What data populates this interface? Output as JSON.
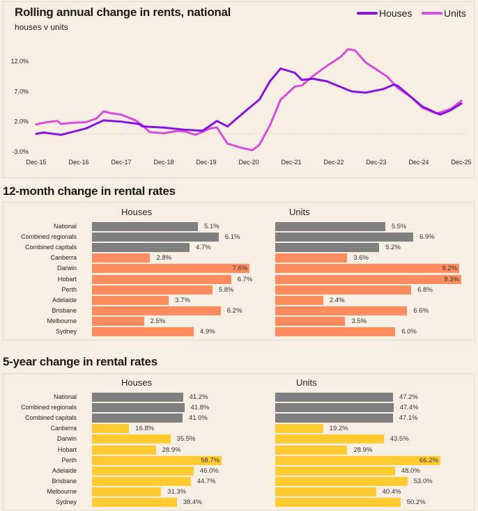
{
  "line_chart": {
    "title": "Rolling annual change in rents, national",
    "subtitle": "houses v units",
    "legend": [
      {
        "label": "Houses",
        "color": "#8a12e0"
      },
      {
        "label": "Units",
        "color": "#d64fd8"
      }
    ]
  },
  "chart_data": [
    {
      "type": "line",
      "title": "Rolling annual change in rents, national",
      "subtitle": "houses v units",
      "x_tick_labels": [
        "Dec-15",
        "Dec-16",
        "Dec-17",
        "Dec-18",
        "Dec-19",
        "Dec-20",
        "Dec-21",
        "Dec-22",
        "Dec-23",
        "Dec-24",
        "Dec-25"
      ],
      "y_tick_labels": [
        "12.0%",
        "7.0%",
        "2.0%",
        "-3.0%"
      ],
      "ylim": [
        -3,
        12
      ],
      "xlim": [
        "2015-12",
        "2025-12"
      ],
      "grid": false,
      "legend_position": "top-right",
      "series": [
        {
          "name": "Houses",
          "color": "#8a12e0",
          "points": [
            [
              "2015-12",
              -0.05
            ],
            [
              "2016-02",
              0.2
            ],
            [
              "2016-07",
              -0.2
            ],
            [
              "2017-02",
              0.85
            ],
            [
              "2017-07",
              2.2
            ],
            [
              "2017-12",
              2.0
            ],
            [
              "2018-05",
              1.6
            ],
            [
              "2018-06",
              1.2
            ],
            [
              "2018-12",
              1.0
            ],
            [
              "2019-06",
              0.65
            ],
            [
              "2019-11",
              0.5
            ],
            [
              "2020-03",
              2.1
            ],
            [
              "2020-06",
              1.2
            ],
            [
              "2020-11",
              3.7
            ],
            [
              "2021-03",
              5.65
            ],
            [
              "2021-06",
              8.7
            ],
            [
              "2021-09",
              10.8
            ],
            [
              "2022-01",
              10.1
            ],
            [
              "2022-03",
              8.9
            ],
            [
              "2022-06",
              9.1
            ],
            [
              "2022-10",
              8.7
            ],
            [
              "2023-05",
              7.0
            ],
            [
              "2023-09",
              6.8
            ],
            [
              "2024-02",
              7.4
            ],
            [
              "2024-05",
              8.15
            ],
            [
              "2024-06",
              7.96
            ],
            [
              "2024-10",
              6.0
            ],
            [
              "2025-01",
              4.5
            ],
            [
              "2025-06",
              3.15
            ],
            [
              "2025-09",
              3.9
            ],
            [
              "2025-12",
              5.0
            ]
          ]
        },
        {
          "name": "Units",
          "color": "#d64fd8",
          "points": [
            [
              "2015-12",
              1.55
            ],
            [
              "2016-03",
              1.9
            ],
            [
              "2016-06",
              2.1
            ],
            [
              "2016-07",
              1.6
            ],
            [
              "2016-10",
              1.8
            ],
            [
              "2017-02",
              1.9
            ],
            [
              "2017-05",
              2.5
            ],
            [
              "2017-07",
              3.7
            ],
            [
              "2017-09",
              3.4
            ],
            [
              "2017-12",
              3.15
            ],
            [
              "2018-04",
              2.2
            ],
            [
              "2018-06",
              1.4
            ],
            [
              "2018-08",
              0.27
            ],
            [
              "2018-12",
              0.07
            ],
            [
              "2019-04",
              0.46
            ],
            [
              "2019-06",
              0.35
            ],
            [
              "2019-09",
              -0.2
            ],
            [
              "2020-01",
              0.85
            ],
            [
              "2020-03",
              1.05
            ],
            [
              "2020-06",
              -1.65
            ],
            [
              "2020-10",
              -2.35
            ],
            [
              "2021-01",
              -2.75
            ],
            [
              "2021-03",
              -1.85
            ],
            [
              "2021-06",
              1.4
            ],
            [
              "2021-09",
              5.65
            ],
            [
              "2022-01",
              7.8
            ],
            [
              "2022-03",
              8.0
            ],
            [
              "2022-06",
              9.5
            ],
            [
              "2022-10",
              11.2
            ],
            [
              "2023-02",
              12.75
            ],
            [
              "2023-04",
              14.0
            ],
            [
              "2023-06",
              13.8
            ],
            [
              "2023-09",
              11.8
            ],
            [
              "2024-03",
              9.5
            ],
            [
              "2024-06",
              7.6
            ],
            [
              "2024-10",
              6.0
            ],
            [
              "2025-01",
              4.3
            ],
            [
              "2025-05",
              3.35
            ],
            [
              "2025-09",
              4.1
            ],
            [
              "2025-12",
              5.45
            ]
          ]
        }
      ]
    },
    {
      "type": "bar",
      "title": "12-month change in rental rates",
      "categories": [
        "National",
        "Combined regionals",
        "Combined capitals",
        "Canberra",
        "Darwin",
        "Hobart",
        "Perth",
        "Adelaide",
        "Brisbane",
        "Melbourne",
        "Sydney"
      ],
      "category_colors": [
        "#7f7f7f",
        "#7f7f7f",
        "#7f7f7f",
        "#ff8c5f",
        "#ff8c5f",
        "#ff8c5f",
        "#ff8c5f",
        "#ff8c5f",
        "#ff8c5f",
        "#ff8c5f",
        "#ff8c5f"
      ],
      "series": [
        {
          "name": "Houses",
          "values": [
            5.1,
            6.1,
            4.7,
            2.8,
            7.6,
            6.7,
            5.8,
            3.7,
            6.2,
            2.5,
            4.9
          ],
          "labels": [
            "5.1%",
            "6.1%",
            "4.7%",
            "2.8%",
            "7.6%",
            "6.7%",
            "5.8%",
            "3.7%",
            "6.2%",
            "2.5%",
            "4.9%"
          ]
        },
        {
          "name": "Units",
          "values": [
            5.5,
            6.9,
            5.2,
            3.6,
            9.2,
            9.3,
            6.8,
            2.4,
            6.6,
            3.5,
            6.0
          ],
          "labels": [
            "5.5%",
            "6.9%",
            "5.2%",
            "3.6%",
            "9.2%",
            "9.3%",
            "6.8%",
            "2.4%",
            "6.6%",
            "3.5%",
            "6.0%"
          ]
        }
      ]
    },
    {
      "type": "bar",
      "title": "5-year change in rental rates",
      "categories": [
        "National",
        "Combined regionals",
        "Combined capitals",
        "Canberra",
        "Darwin",
        "Hobart",
        "Perth",
        "Adelaide",
        "Brisbane",
        "Melbourne",
        "Sydney"
      ],
      "category_colors": [
        "#7f7f7f",
        "#7f7f7f",
        "#7f7f7f",
        "#ffcb30",
        "#ffcb30",
        "#ffcb30",
        "#ffcb30",
        "#ffcb30",
        "#ffcb30",
        "#ffcb30",
        "#ffcb30"
      ],
      "series": [
        {
          "name": "Houses",
          "values": [
            41.2,
            41.8,
            41.0,
            16.8,
            35.5,
            28.9,
            58.7,
            46.0,
            44.7,
            31.3,
            38.4
          ],
          "labels": [
            "41.2%",
            "41.8%",
            "41.0%",
            "16.8%",
            "35.5%",
            "28.9%",
            "58.7%",
            "46.0%",
            "44.7%",
            "31.3%",
            "38.4%"
          ]
        },
        {
          "name": "Units",
          "values": [
            47.2,
            47.4,
            47.1,
            19.2,
            43.5,
            28.9,
            66.2,
            48.0,
            53.0,
            40.4,
            50.2
          ],
          "labels": [
            "47.2%",
            "47.4%",
            "47.1%",
            "19.2%",
            "43.5%",
            "28.9%",
            "66.2%",
            "48.0%",
            "53.0%",
            "40.4%",
            "50.2%"
          ]
        }
      ]
    }
  ]
}
